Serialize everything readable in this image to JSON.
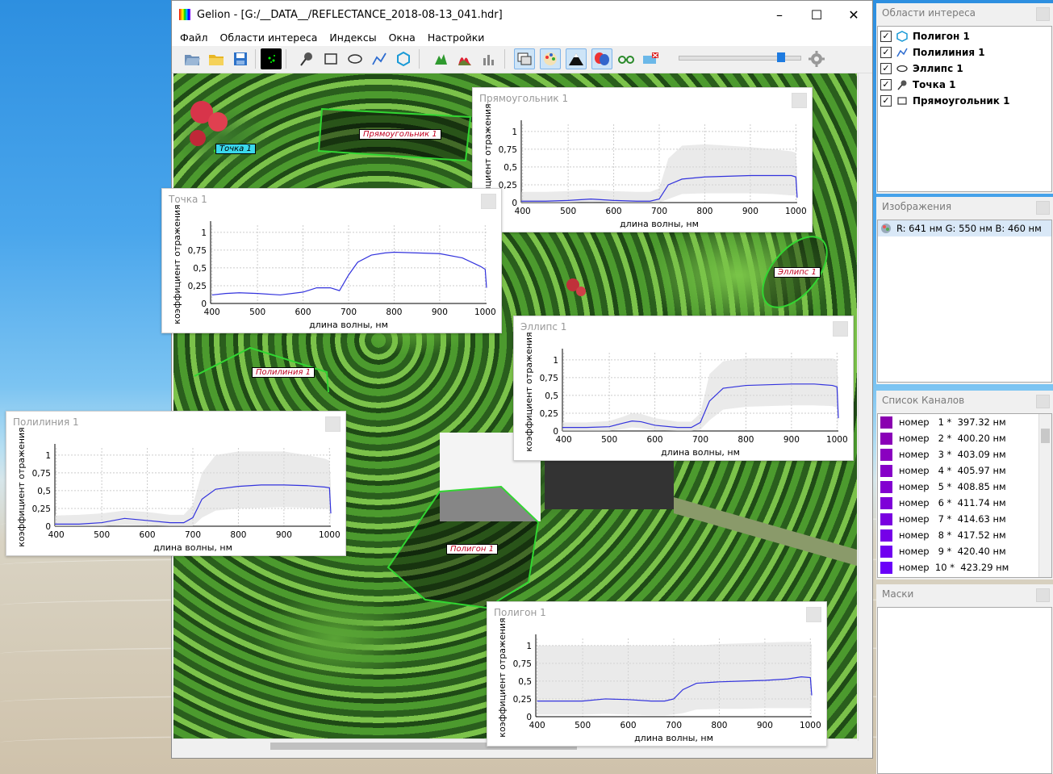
{
  "window": {
    "title": "Gelion - [G:/__DATA__/REFLECTANCE_2018-08-13_041.hdr]",
    "minimize": "–",
    "maximize": "☐",
    "close": "✕"
  },
  "menu": [
    "Файл",
    "Области интереса",
    "Индексы",
    "Окна",
    "Настройки"
  ],
  "toolbar_icons": [
    "open-folder-icon",
    "folder-icon",
    "save-icon",
    "scatter-view-icon",
    "point-tool-icon",
    "rectangle-tool-icon",
    "ellipse-tool-icon",
    "polyline-tool-icon",
    "polygon-tool-icon",
    "leaf-index-icon",
    "histogram-icon",
    "bar-chart-icon",
    "windows-icon",
    "palette-icon",
    "mountain-icon",
    "masks-icon",
    "glasses-icon",
    "clear-icon",
    "settings-icon"
  ],
  "roi_labels": {
    "point": "Точка 1",
    "rectangle": "Прямоугольник 1",
    "ellipse": "Эллипс 1",
    "polyline": "Полилиния 1",
    "polygon": "Полигон 1"
  },
  "charts": {
    "rect": {
      "title": "Прямоугольник 1"
    },
    "point": {
      "title": "Точка 1"
    },
    "ellipse": {
      "title": "Эллипс 1"
    },
    "polyline": {
      "title": "Полилиния 1"
    },
    "polygon": {
      "title": "Полигон 1"
    }
  },
  "chart_data": [
    {
      "type": "line",
      "title": "Прямоугольник 1",
      "xlabel": "длина волны, нм",
      "ylabel": "коэффициент отражения",
      "xlim": [
        397,
        1003
      ],
      "ylim": [
        0,
        1.1
      ],
      "xticks": [
        400,
        500,
        600,
        700,
        800,
        900,
        1000
      ],
      "yticks": [
        "0",
        "0,25",
        "0,5",
        "0,75",
        "1"
      ],
      "series": [
        {
          "x": [
            397,
            450,
            500,
            550,
            600,
            650,
            680,
            700,
            720,
            750,
            800,
            850,
            900,
            950,
            990,
            1000,
            1003
          ],
          "values": [
            0.02,
            0.02,
            0.03,
            0.05,
            0.03,
            0.02,
            0.02,
            0.05,
            0.25,
            0.33,
            0.36,
            0.37,
            0.38,
            0.38,
            0.38,
            0.36,
            0.07
          ]
        }
      ],
      "band": {
        "upper": [
          0.15,
          0.15,
          0.16,
          0.18,
          0.16,
          0.15,
          0.15,
          0.2,
          0.62,
          0.8,
          0.82,
          0.8,
          0.78,
          0.75,
          0.72,
          0.7,
          0.4
        ],
        "lower": [
          0,
          0,
          0,
          0.01,
          0,
          0,
          0,
          0,
          0.05,
          0.12,
          0.13,
          0.13,
          0.13,
          0.12,
          0.1,
          0.1,
          0
        ]
      }
    },
    {
      "type": "line",
      "title": "Точка 1",
      "xlabel": "длина волны, нм",
      "ylabel": "коэффициент отражения",
      "xlim": [
        397,
        1003
      ],
      "ylim": [
        0,
        1.1
      ],
      "xticks": [
        400,
        500,
        600,
        700,
        800,
        900,
        1000
      ],
      "yticks": [
        "0",
        "0,25",
        "0,5",
        "0,75",
        "1"
      ],
      "series": [
        {
          "x": [
            400,
            430,
            460,
            500,
            550,
            600,
            630,
            660,
            680,
            700,
            720,
            750,
            780,
            800,
            850,
            900,
            950,
            990,
            1000,
            1003
          ],
          "values": [
            0.12,
            0.14,
            0.15,
            0.14,
            0.12,
            0.16,
            0.22,
            0.22,
            0.18,
            0.4,
            0.58,
            0.68,
            0.71,
            0.72,
            0.71,
            0.7,
            0.64,
            0.52,
            0.48,
            0.22
          ]
        }
      ]
    },
    {
      "type": "line",
      "title": "Эллипс 1",
      "xlabel": "длина волны, нм",
      "ylabel": "коэффициент отражения",
      "xlim": [
        397,
        1003
      ],
      "ylim": [
        0,
        1.1
      ],
      "xticks": [
        400,
        500,
        600,
        700,
        800,
        900,
        1000
      ],
      "yticks": [
        "0",
        "0,25",
        "0,5",
        "0,75",
        "1"
      ],
      "series": [
        {
          "x": [
            397,
            450,
            500,
            530,
            550,
            570,
            600,
            650,
            680,
            700,
            720,
            750,
            800,
            850,
            900,
            950,
            990,
            1000,
            1003
          ],
          "values": [
            0.05,
            0.05,
            0.06,
            0.11,
            0.14,
            0.13,
            0.08,
            0.05,
            0.05,
            0.12,
            0.42,
            0.6,
            0.64,
            0.65,
            0.66,
            0.66,
            0.64,
            0.62,
            0.18
          ]
        }
      ],
      "band": {
        "upper": [
          0.12,
          0.12,
          0.14,
          0.2,
          0.25,
          0.24,
          0.18,
          0.13,
          0.13,
          0.25,
          0.8,
          0.98,
          1.02,
          1.02,
          1.02,
          1.02,
          1.02,
          1,
          0.6
        ],
        "lower": [
          0,
          0,
          0,
          0.03,
          0.05,
          0.04,
          0.01,
          0,
          0,
          0.02,
          0.15,
          0.3,
          0.34,
          0.35,
          0.36,
          0.36,
          0.35,
          0.33,
          0
        ]
      }
    },
    {
      "type": "line",
      "title": "Полилиния 1",
      "xlabel": "длина волны, нм",
      "ylabel": "коэффициент отражения",
      "xlim": [
        397,
        1003
      ],
      "ylim": [
        0,
        1.1
      ],
      "xticks": [
        400,
        500,
        600,
        700,
        800,
        900,
        1000
      ],
      "yticks": [
        "0",
        "0,25",
        "0,5",
        "0,75",
        "1"
      ],
      "series": [
        {
          "x": [
            397,
            450,
            500,
            550,
            600,
            650,
            680,
            700,
            720,
            750,
            800,
            850,
            900,
            950,
            990,
            1000,
            1003
          ],
          "values": [
            0.03,
            0.03,
            0.05,
            0.11,
            0.08,
            0.05,
            0.05,
            0.12,
            0.38,
            0.52,
            0.56,
            0.58,
            0.58,
            0.57,
            0.55,
            0.54,
            0.18
          ]
        }
      ],
      "band": {
        "upper": [
          0.15,
          0.16,
          0.18,
          0.22,
          0.2,
          0.16,
          0.16,
          0.3,
          0.75,
          1.0,
          1.05,
          1.05,
          1.05,
          1.0,
          0.95,
          0.92,
          0.6
        ],
        "lower": [
          0,
          0,
          0,
          0.02,
          0.01,
          0,
          0,
          0,
          0.12,
          0.22,
          0.25,
          0.26,
          0.27,
          0.26,
          0.25,
          0.24,
          0
        ]
      }
    },
    {
      "type": "line",
      "title": "Полигон 1",
      "xlabel": "длина волны, нм",
      "ylabel": "коэффициент отражения",
      "xlim": [
        397,
        1003
      ],
      "ylim": [
        0,
        1.1
      ],
      "xticks": [
        400,
        500,
        600,
        700,
        800,
        900,
        1000
      ],
      "yticks": [
        "0",
        "0,25",
        "0,5",
        "0,75",
        "1"
      ],
      "series": [
        {
          "x": [
            400,
            450,
            500,
            550,
            600,
            650,
            680,
            700,
            720,
            750,
            800,
            850,
            900,
            950,
            980,
            1000,
            1003
          ],
          "values": [
            0.22,
            0.22,
            0.22,
            0.25,
            0.24,
            0.22,
            0.22,
            0.25,
            0.38,
            0.47,
            0.49,
            0.5,
            0.51,
            0.53,
            0.56,
            0.55,
            0.3
          ]
        }
      ],
      "band": {
        "upper": [
          1.0,
          1.0,
          1.0,
          1.0,
          1.0,
          1.0,
          1.0,
          1.0,
          1.0,
          1.0,
          1.02,
          1.03,
          1.04,
          1.05,
          1.05,
          1.05,
          1.0
        ],
        "lower": [
          0.03,
          0.03,
          0.03,
          0.04,
          0.03,
          0.02,
          0.02,
          0.03,
          0.05,
          0.1,
          0.11,
          0.11,
          0.12,
          0.12,
          0.12,
          0.12,
          0.02
        ]
      }
    }
  ],
  "panels": {
    "roi": {
      "title": "Области интереса",
      "items": [
        {
          "label": "Полигон 1",
          "icon": "polygon-icon"
        },
        {
          "label": "Полилиния 1",
          "icon": "polyline-icon"
        },
        {
          "label": "Эллипс 1",
          "icon": "ellipse-icon"
        },
        {
          "label": "Точка 1",
          "icon": "point-icon"
        },
        {
          "label": "Прямоугольник 1",
          "icon": "rectangle-icon"
        }
      ]
    },
    "images": {
      "title": "Изображения",
      "item": "R: 641 нм G: 550 нм B: 460 нм"
    },
    "channels": {
      "title": "Список Каналов",
      "items": [
        {
          "label": "номер   1 *  397.32 нм",
          "color": "#8a00b0"
        },
        {
          "label": "номер   2 *  400.20 нм",
          "color": "#8a00b8"
        },
        {
          "label": "номер   3 *  403.09 нм",
          "color": "#8a00c0"
        },
        {
          "label": "номер   4 *  405.97 нм",
          "color": "#8600c8"
        },
        {
          "label": "номер   5 *  408.85 нм",
          "color": "#8200d0"
        },
        {
          "label": "номер   6 *  411.74 нм",
          "color": "#7e00d8"
        },
        {
          "label": "номер   7 *  414.63 нм",
          "color": "#7a00e0"
        },
        {
          "label": "номер   8 *  417.52 нм",
          "color": "#7600e8"
        },
        {
          "label": "номер   9 *  420.40 нм",
          "color": "#7000f0"
        },
        {
          "label": "номер  10 *  423.29 нм",
          "color": "#6a00f8"
        }
      ]
    },
    "masks": {
      "title": "Маски"
    }
  }
}
